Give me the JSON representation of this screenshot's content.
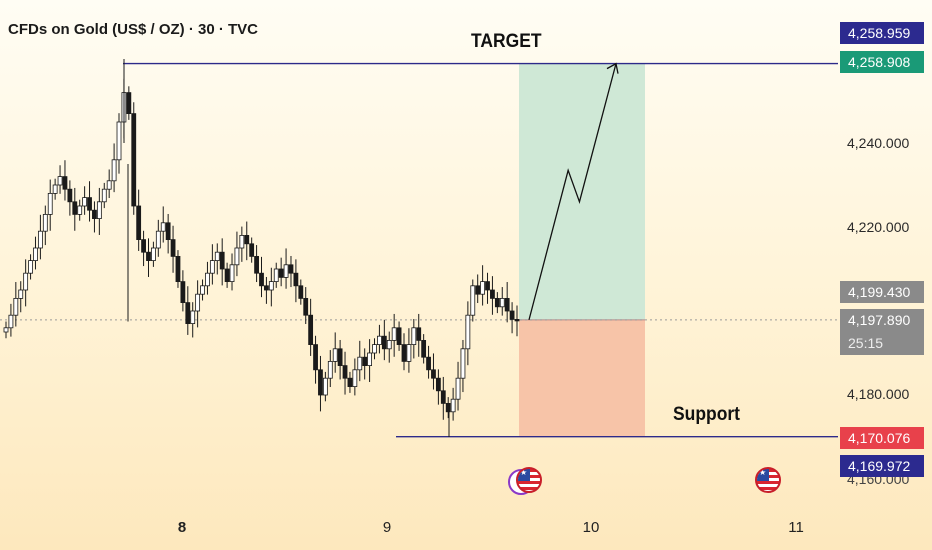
{
  "header": {
    "title": "CFDs on Gold (US$ / OZ) · 30 · TVC"
  },
  "annotations": {
    "target": "TARGET",
    "support": "Support"
  },
  "y_axis": {
    "ticks": [
      "4,240.000",
      "4,220.000",
      "4,180.000",
      "4,160.000"
    ]
  },
  "x_axis": {
    "ticks": [
      "8",
      "9",
      "10",
      "11"
    ]
  },
  "price_tags": {
    "target_top": "4,258.959",
    "target_level": "4,258.908",
    "current_close": "4,199.430",
    "current_price": "4,197.890",
    "countdown": "25:15",
    "support_level": "4,170.076",
    "support_low": "4,169.972"
  },
  "colors": {
    "target_line": "#2d2a8a",
    "profit_zone": "#cfe8d6",
    "loss_zone": "#f7c4a8",
    "candle": "#1a1a1a",
    "tag_navy": "#2c2a8f",
    "tag_green": "#1a9a77",
    "tag_gray": "#8a8a8a",
    "tag_red": "#e8414b"
  },
  "icons": [
    "us-flag-icon",
    "us-flag-icon"
  ],
  "chart_data": {
    "type": "candlestick",
    "title": "CFDs on Gold (US$ / OZ) · 30 · TVC",
    "ylim": [
      4150,
      4272
    ],
    "x_ticks": [
      "8",
      "9",
      "10",
      "11"
    ],
    "y_ticks": [
      4240,
      4220,
      4180,
      4160
    ],
    "levels": {
      "target": 4258.908,
      "support": 4170.076,
      "current_price": 4197.89
    },
    "position": {
      "entry": 4197.89,
      "take_profit": 4258.908,
      "stop_loss": 4170.076
    },
    "projection_path": [
      [
        0,
        4197.89
      ],
      [
        0.45,
        4233.5
      ],
      [
        0.58,
        4226.0
      ],
      [
        1.0,
        4258.9
      ]
    ],
    "close_series": [
      4196,
      4199,
      4203,
      4205,
      4209,
      4212,
      4215,
      4219,
      4223,
      4228,
      4230,
      4232,
      4229,
      4226,
      4223,
      4225,
      4227,
      4224,
      4222,
      4226,
      4229,
      4231,
      4236,
      4245,
      4252,
      4247,
      4225,
      4217,
      4214,
      4212,
      4215,
      4219,
      4221,
      4217,
      4213,
      4207,
      4202,
      4197,
      4200,
      4204,
      4206,
      4209,
      4212,
      4214,
      4210,
      4207,
      4211,
      4215,
      4218,
      4216,
      4213,
      4209,
      4206,
      4205,
      4207,
      4210,
      4208,
      4211,
      4209,
      4206,
      4203,
      4199,
      4192,
      4186,
      4180,
      4184,
      4188,
      4191,
      4187,
      4184,
      4182,
      4186,
      4189,
      4187,
      4190,
      4192,
      4194,
      4191,
      4193,
      4196,
      4192,
      4188,
      4192,
      4196,
      4193,
      4189,
      4186,
      4184,
      4181,
      4178,
      4176,
      4179,
      4184,
      4191,
      4199,
      4206,
      4204,
      4207,
      4205,
      4203,
      4201,
      4203,
      4200,
      4198,
      4197.89
    ]
  }
}
